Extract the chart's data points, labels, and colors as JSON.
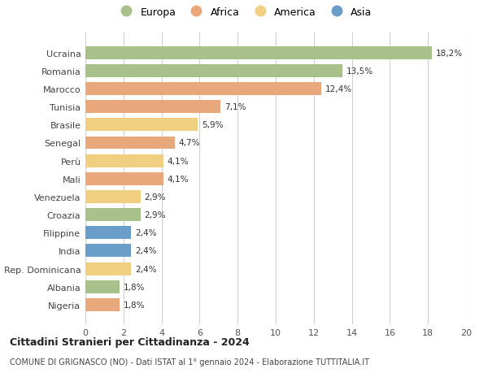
{
  "categories": [
    "Ucraina",
    "Romania",
    "Marocco",
    "Tunisia",
    "Brasile",
    "Senegal",
    "Perù",
    "Mali",
    "Venezuela",
    "Croazia",
    "Filippine",
    "India",
    "Rep. Dominicana",
    "Albania",
    "Nigeria"
  ],
  "values": [
    18.2,
    13.5,
    12.4,
    7.1,
    5.9,
    4.7,
    4.1,
    4.1,
    2.9,
    2.9,
    2.4,
    2.4,
    2.4,
    1.8,
    1.8
  ],
  "labels": [
    "18,2%",
    "13,5%",
    "12,4%",
    "7,1%",
    "5,9%",
    "4,7%",
    "4,1%",
    "4,1%",
    "2,9%",
    "2,9%",
    "2,4%",
    "2,4%",
    "2,4%",
    "1,8%",
    "1,8%"
  ],
  "continents": [
    "Europa",
    "Europa",
    "Africa",
    "Africa",
    "America",
    "Africa",
    "America",
    "Africa",
    "America",
    "Europa",
    "Asia",
    "Asia",
    "America",
    "Europa",
    "Africa"
  ],
  "colors": {
    "Europa": "#a8c08a",
    "Africa": "#e8a87c",
    "America": "#f0d080",
    "Asia": "#6a9ec8"
  },
  "legend_order": [
    "Europa",
    "Africa",
    "America",
    "Asia"
  ],
  "title1": "Cittadini Stranieri per Cittadinanza - 2024",
  "title2": "COMUNE DI GRIGNASCO (NO) - Dati ISTAT al 1° gennaio 2024 - Elaborazione TUTTITALIA.IT",
  "xlim": [
    0,
    20
  ],
  "xticks": [
    0,
    2,
    4,
    6,
    8,
    10,
    12,
    14,
    16,
    18,
    20
  ],
  "background_color": "#ffffff",
  "grid_color": "#d0d0d0"
}
